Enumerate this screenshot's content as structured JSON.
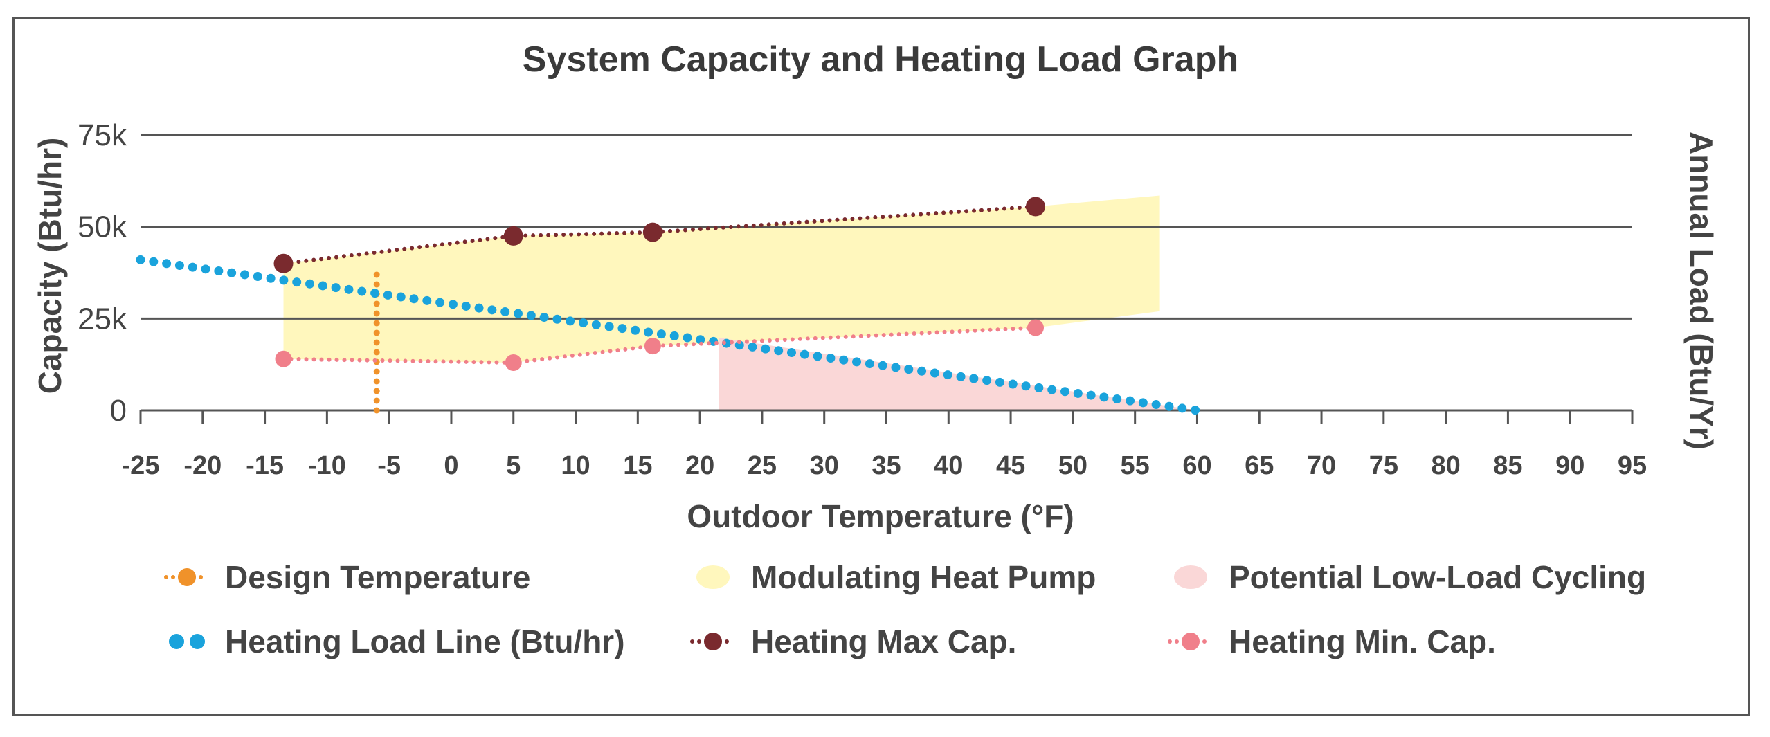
{
  "chart_data": {
    "type": "line",
    "title": "System Capacity and Heating Load Graph",
    "xlabel": "Outdoor Temperature (°F)",
    "ylabel": "Capacity (Btu/hr)",
    "y2label": "Annual Load (Btu/Yr)",
    "xlim": [
      -25,
      95
    ],
    "ylim": [
      0,
      75000
    ],
    "x_ticks": [
      -25,
      -20,
      -15,
      -10,
      -5,
      0,
      5,
      10,
      15,
      20,
      25,
      30,
      35,
      40,
      45,
      50,
      55,
      60,
      65,
      70,
      75,
      80,
      85,
      90,
      95
    ],
    "x_tick_labels": [
      "-25",
      "-20",
      "-15",
      "-10",
      "-5",
      "0",
      "5",
      "10",
      "15",
      "20",
      "25",
      "30",
      "35",
      "40",
      "45",
      "50",
      "55",
      "60",
      "65",
      "70",
      "75",
      "80",
      "85",
      "90",
      "95"
    ],
    "y_ticks": [
      0,
      25000,
      50000,
      75000
    ],
    "y_tick_labels": [
      "0",
      "25k",
      "50k",
      "75k"
    ],
    "grid": "horizontal",
    "legend_position": "bottom",
    "series": [
      {
        "name": "Design Temperature",
        "kind": "vertical-line",
        "x": -6,
        "y_range": [
          0,
          37000
        ],
        "color": "#f0922a"
      },
      {
        "name": "Heating Load Line (Btu/hr)",
        "kind": "dotted-line",
        "x": [
          -25,
          60
        ],
        "y": [
          41000,
          0
        ],
        "color": "#1aa3dc"
      },
      {
        "name": "Heating Max Cap.",
        "kind": "dotted-line-markers",
        "x": [
          -13.5,
          5,
          16.2,
          47
        ],
        "y": [
          40000,
          47500,
          48500,
          55500
        ],
        "color": "#7a2a2e"
      },
      {
        "name": "Heating Min. Cap.",
        "kind": "dotted-line-markers",
        "x": [
          -13.5,
          5,
          16.2,
          47
        ],
        "y": [
          14000,
          13000,
          17500,
          22500
        ],
        "color": "#f07f8a"
      },
      {
        "name": "Modulating Heat Pump",
        "kind": "area",
        "x": [
          -13.5,
          5,
          16.2,
          47,
          57,
          57,
          47,
          16.2,
          5,
          -13.5
        ],
        "y": [
          40000,
          47500,
          48500,
          55500,
          58500,
          27000,
          22500,
          17500,
          13000,
          14000
        ],
        "color": "#fff7bd"
      },
      {
        "name": "Potential Low-Load Cycling",
        "kind": "area",
        "x": [
          21.5,
          21.5,
          60
        ],
        "y": [
          0,
          19800,
          0
        ],
        "color": "#fad7d7"
      }
    ],
    "legend": [
      {
        "label": "Design Temperature",
        "symbol": "dot-line",
        "color": "#f0922a"
      },
      {
        "label": "Modulating Heat Pump",
        "symbol": "blob",
        "color": "#fff7bd"
      },
      {
        "label": "Potential Low-Load Cycling",
        "symbol": "blob",
        "color": "#fad7d7"
      },
      {
        "label": "Heating Load Line (Btu/hr)",
        "symbol": "dots",
        "color": "#1aa3dc"
      },
      {
        "label": "Heating Max Cap.",
        "symbol": "dot-line",
        "color": "#7a2a2e"
      },
      {
        "label": "Heating Min. Cap.",
        "symbol": "dot-line",
        "color": "#f07f8a"
      }
    ]
  }
}
